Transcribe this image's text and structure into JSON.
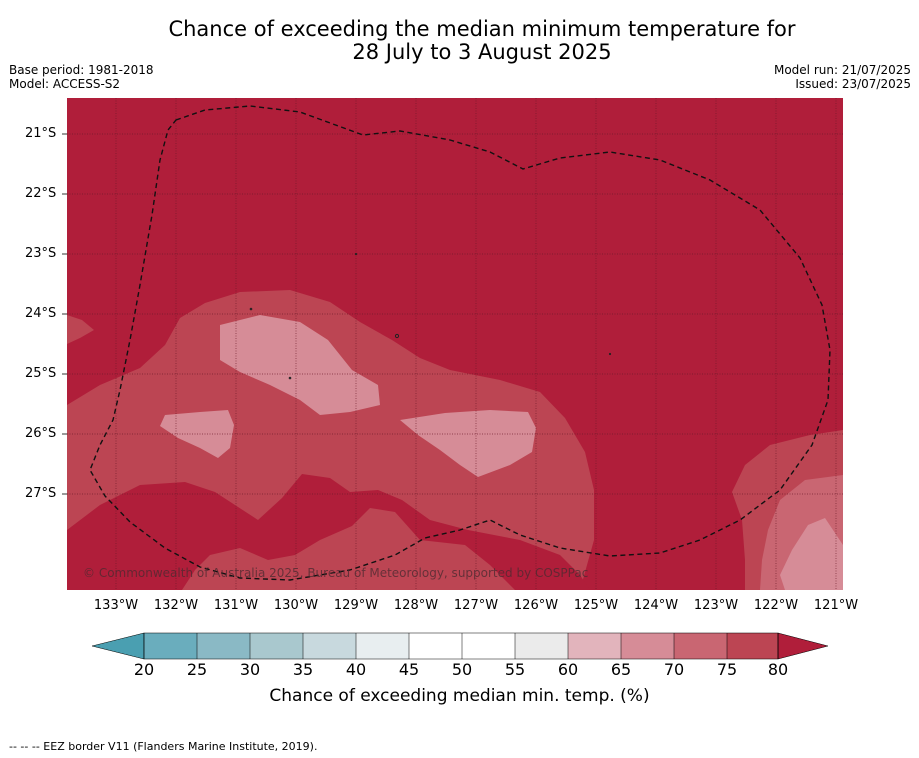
{
  "title_line1": "Chance of exceeding the median minimum temperature for",
  "title_line2": "28 July to 3 August 2025",
  "meta": {
    "base_period": "Base period: 1981-2018",
    "model": "Model: ACCESS-S2",
    "model_run": "Model run: 21/07/2025",
    "issued": "Issued: 23/07/2025"
  },
  "latitudes": [
    "21°S",
    "22°S",
    "23°S",
    "24°S",
    "25°S",
    "26°S",
    "27°S"
  ],
  "longitudes": [
    "133°W",
    "132°W",
    "131°W",
    "130°W",
    "129°W",
    "128°W",
    "127°W",
    "126°W",
    "125°W",
    "124°W",
    "123°W",
    "122°W",
    "121°W"
  ],
  "copyright": "© Commonwealth of Australia 2025, Bureau of Meteorology, supported by COSPPac",
  "colorbar": {
    "ticks": [
      "20",
      "25",
      "30",
      "35",
      "40",
      "45",
      "50",
      "55",
      "60",
      "65",
      "70",
      "75",
      "80"
    ],
    "colors": [
      "#6aadbd",
      "#8ab9c5",
      "#a9c8ce",
      "#c8d9de",
      "#e8eef0",
      "#ffffff",
      "#ffffff",
      "#ebebeb",
      "#e2b4bc",
      "#d68c97",
      "#c96672",
      "#bc4553"
    ],
    "under_color": "#4a9fb1",
    "over_color": "#b01e3a",
    "title": "Chance of exceeding median min. temp. (%)"
  },
  "footer": "--  --  -- EEZ border V11 (Flanders Marine Institute, 2019)."
}
